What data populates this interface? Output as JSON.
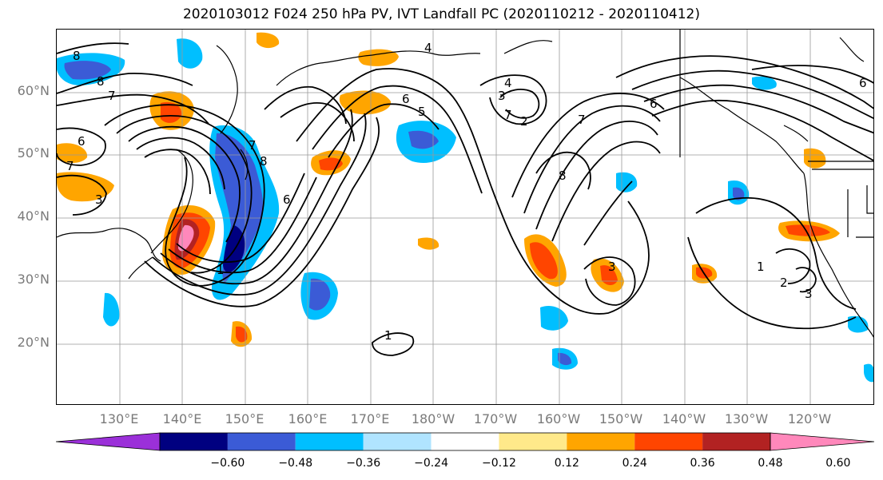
{
  "title": "2020103012 F024 250 hPa PV, IVT Landfall PC (2020110212 - 2020110412)",
  "lat_labels": [
    "60°N",
    "50°N",
    "40°N",
    "30°N",
    "20°N"
  ],
  "lon_labels": [
    "130°E",
    "140°E",
    "150°E",
    "160°E",
    "170°E",
    "180°W",
    "170°W",
    "160°W",
    "150°W",
    "140°W",
    "130°W",
    "120°W"
  ],
  "contour_labels": [
    "8",
    "8",
    "7",
    "6",
    "7",
    "3",
    "4",
    "4",
    "3",
    "6",
    "5",
    "7",
    "2",
    "6",
    "7",
    "8",
    "6",
    "1",
    "1",
    "2",
    "3",
    "6",
    "1",
    "8",
    "7",
    "3"
  ],
  "colorbar": {
    "colors": [
      "#9b30d9",
      "#000080",
      "#3b5bd6",
      "#00bfff",
      "#b0e4ff",
      "#ffffff",
      "#ffe98a",
      "#ffa500",
      "#ff4500",
      "#b22222",
      "#ff88bb"
    ],
    "tick_labels": [
      "−0.60",
      "−0.48",
      "−0.36",
      "−0.24",
      "−0.12",
      "0.12",
      "0.24",
      "0.36",
      "0.48",
      "0.60"
    ]
  }
}
